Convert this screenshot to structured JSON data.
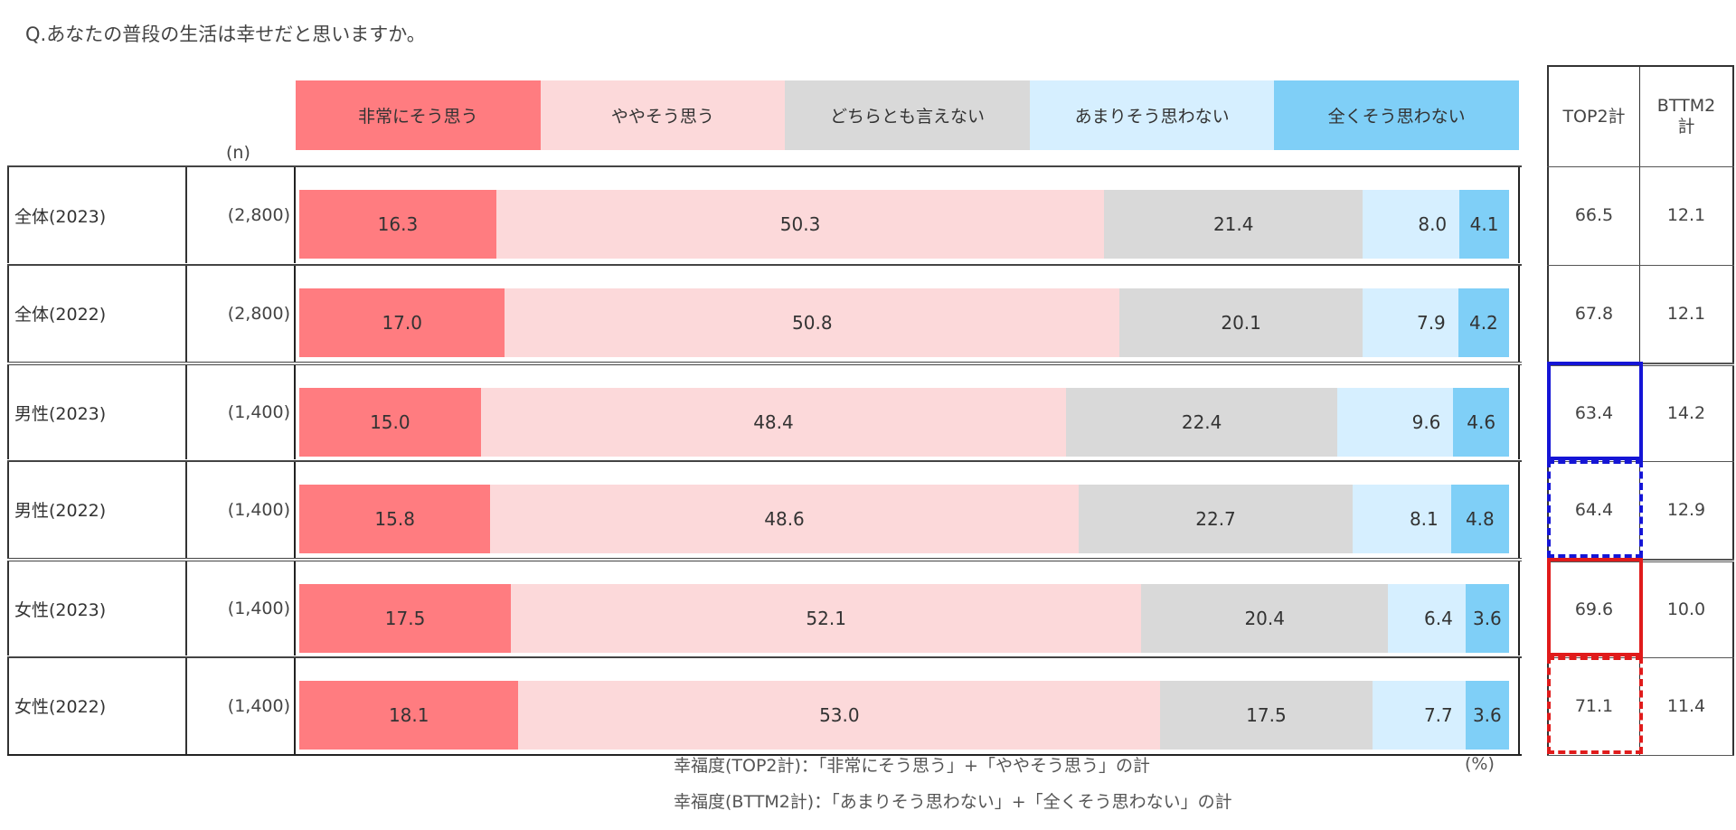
{
  "question": "Q.あなたの普段の生活は幸せだと思いますか。",
  "n_header": "(n)",
  "legend": [
    {
      "label": "非常にそう思う",
      "color": "#ff7c80"
    },
    {
      "label": "ややそう思う",
      "color": "#fcd9da"
    },
    {
      "label": "どちらとも言えない",
      "color": "#d9d9d9"
    },
    {
      "label": "あまりそう思わない",
      "color": "#d6efff"
    },
    {
      "label": "全くそう思わない",
      "color": "#7fcff7"
    }
  ],
  "rows": [
    {
      "label": "全体(2023)",
      "n": "(2,800)",
      "values": [
        "16.3",
        "50.3",
        "21.4",
        "8.0",
        "4.1"
      ],
      "top2": "66.5",
      "bttm2": "12.1"
    },
    {
      "label": "全体(2022)",
      "n": "(2,800)",
      "values": [
        "17.0",
        "50.8",
        "20.1",
        "7.9",
        "4.2"
      ],
      "top2": "67.8",
      "bttm2": "12.1"
    },
    {
      "label": "男性(2023)",
      "n": "(1,400)",
      "values": [
        "15.0",
        "48.4",
        "22.4",
        "9.6",
        "4.6"
      ],
      "top2": "63.4",
      "bttm2": "14.2"
    },
    {
      "label": "男性(2022)",
      "n": "(1,400)",
      "values": [
        "15.8",
        "48.6",
        "22.7",
        "8.1",
        "4.8"
      ],
      "top2": "64.4",
      "bttm2": "12.9"
    },
    {
      "label": "女性(2023)",
      "n": "(1,400)",
      "values": [
        "17.5",
        "52.1",
        "20.4",
        "6.4",
        "3.6"
      ],
      "top2": "69.6",
      "bttm2": "10.0"
    },
    {
      "label": "女性(2022)",
      "n": "(1,400)",
      "values": [
        "18.1",
        "53.0",
        "17.5",
        "7.7",
        "3.6"
      ],
      "top2": "71.1",
      "bttm2": "11.4"
    }
  ],
  "summary_table": {
    "headers": [
      "TOP2計",
      "BTTM2\n計"
    ]
  },
  "highlight_colors": {
    "male": "#1515d6",
    "female": "#e01b1b"
  },
  "footnotes": {
    "top2": "幸福度(TOP2計)：「非常にそう思う」+「ややそう思う」の計",
    "bttm2": "幸福度(BTTM2計)：「あまりそう思わない」+「全くそう思わない」の計",
    "unit": "(%)"
  },
  "chart_data": {
    "type": "bar",
    "orientation": "horizontal-stacked-100",
    "title": "Q.あなたの普段の生活は幸せだと思いますか。",
    "categories": [
      "全体(2023)",
      "全体(2022)",
      "男性(2023)",
      "男性(2022)",
      "女性(2023)",
      "女性(2022)"
    ],
    "n": [
      "2,800",
      "2,800",
      "1,400",
      "1,400",
      "1,400",
      "1,400"
    ],
    "series": [
      {
        "name": "非常にそう思う",
        "values": [
          16.3,
          17.0,
          15.0,
          15.8,
          17.5,
          18.1
        ]
      },
      {
        "name": "ややそう思う",
        "values": [
          50.3,
          50.8,
          48.4,
          48.6,
          52.1,
          53.0
        ]
      },
      {
        "name": "どちらとも言えない",
        "values": [
          21.4,
          20.1,
          22.4,
          22.7,
          20.4,
          17.5
        ]
      },
      {
        "name": "あまりそう思わない",
        "values": [
          8.0,
          7.9,
          9.6,
          8.1,
          6.4,
          7.7
        ]
      },
      {
        "name": "全くそう思わない",
        "values": [
          4.1,
          4.2,
          4.6,
          4.8,
          3.6,
          3.6
        ]
      }
    ],
    "totals": {
      "TOP2計": [
        66.5,
        67.8,
        63.4,
        64.4,
        69.6,
        71.1
      ],
      "BTTM2計": [
        12.1,
        12.1,
        14.2,
        12.9,
        10.0,
        11.4
      ]
    },
    "unit": "%",
    "legend_position": "top",
    "xlim": [
      0,
      100
    ]
  }
}
